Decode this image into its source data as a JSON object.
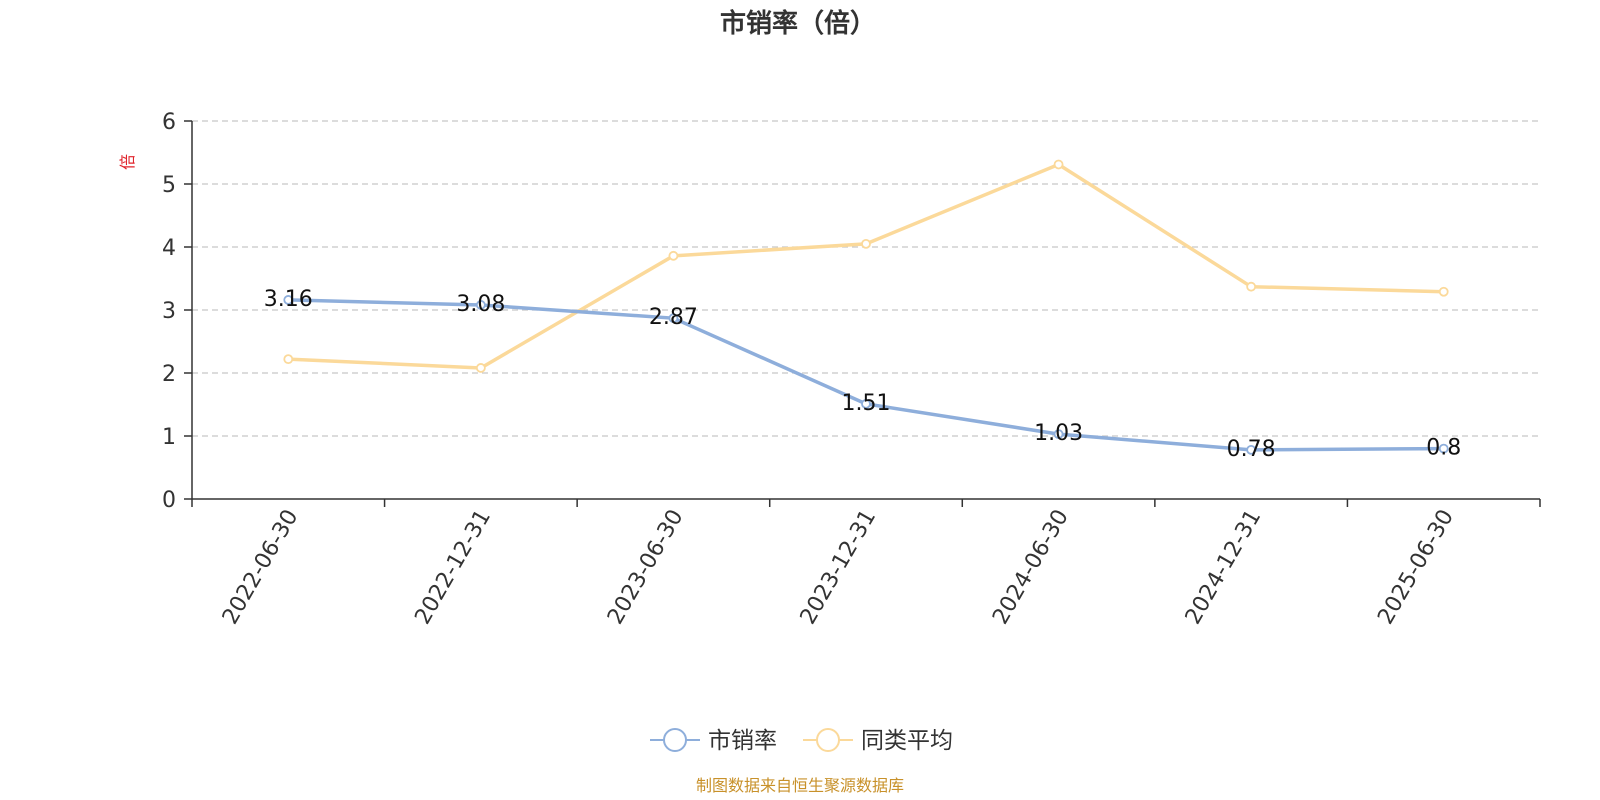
{
  "chart_data": {
    "type": "line",
    "title": "市销率（倍）",
    "ylabel": "倍",
    "xlabel": "",
    "ylim": [
      0,
      6
    ],
    "yticks": [
      0,
      1,
      2,
      3,
      4,
      5,
      6
    ],
    "grid": true,
    "legend_position": "bottom",
    "categories": [
      "2022-06-30",
      "2022-12-31",
      "2023-06-30",
      "2023-12-31",
      "2024-06-30",
      "2024-12-31",
      "2025-06-30"
    ],
    "series": [
      {
        "name": "市销率",
        "color": "#8eaedb",
        "values": [
          3.16,
          3.08,
          2.87,
          1.51,
          1.03,
          0.78,
          0.8
        ],
        "labels": [
          "3.16",
          "3.08",
          "2.87",
          "1.51",
          "1.03",
          "0.78",
          "0.8"
        ],
        "show_labels": true
      },
      {
        "name": "同类平均",
        "color": "#fbd99a",
        "values": [
          2.22,
          2.08,
          3.86,
          4.05,
          5.31,
          3.37,
          3.29
        ],
        "show_labels": false
      }
    ]
  },
  "source_note": "制图数据来自恒生聚源数据库"
}
